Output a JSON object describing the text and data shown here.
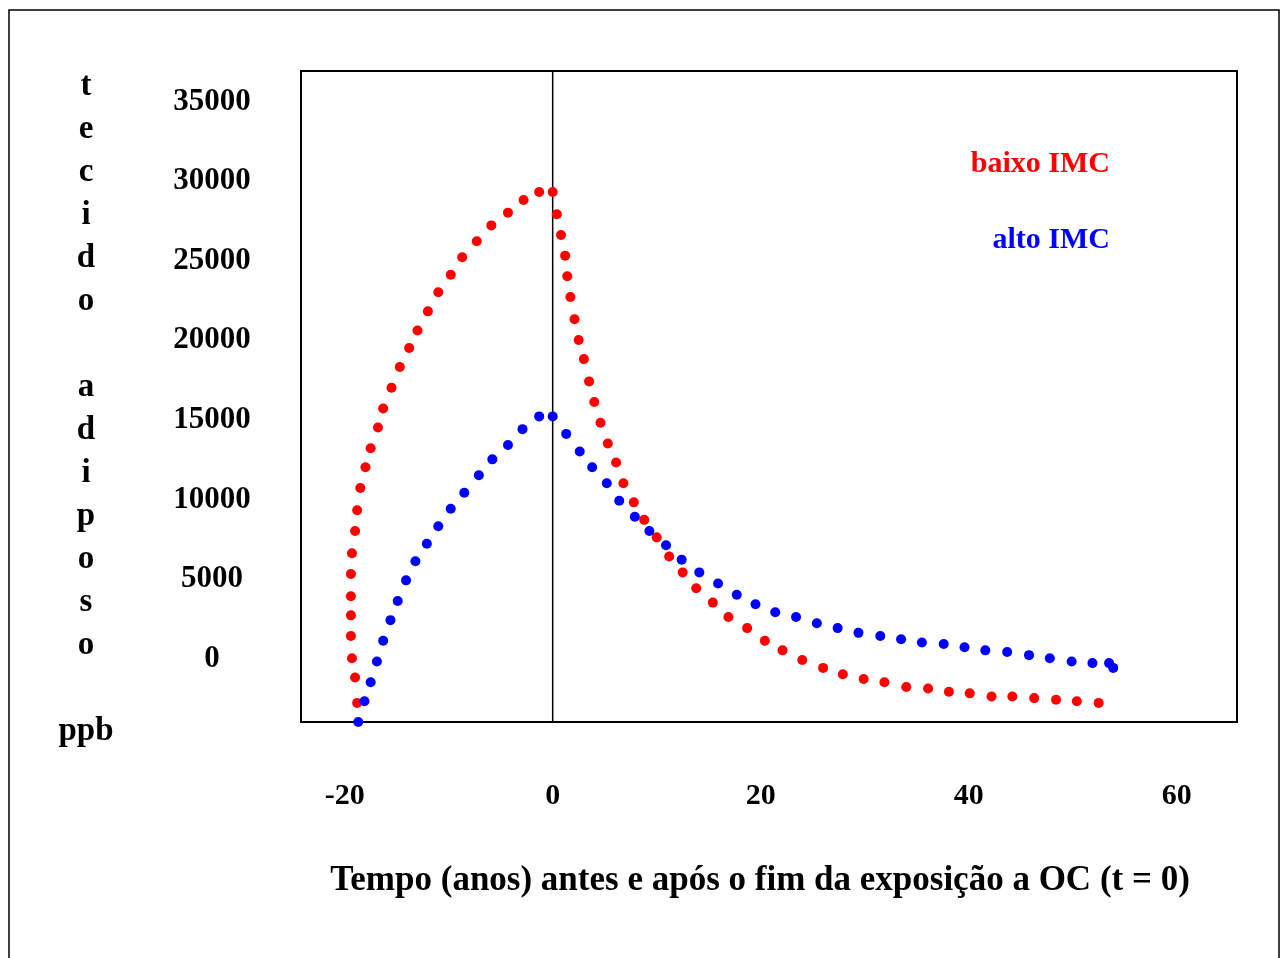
{
  "chart_data": {
    "type": "scatter",
    "xlabel": "Tempo (anos) antes e após o fim da exposição a OC (t = 0)",
    "ylabel": "tecido adiposo ppb",
    "xlim": [
      -24.2,
      65.8
    ],
    "xticks": [
      -20,
      0,
      20,
      40,
      60
    ],
    "ylim": [
      -4100,
      36800
    ],
    "yticks": [
      0,
      5000,
      10000,
      15000,
      20000,
      25000,
      30000,
      35000
    ],
    "grid": false,
    "legend": "top right",
    "marker": "circle",
    "ref_lines": [
      {
        "axis": "x",
        "value": 0,
        "color": "#000000"
      }
    ],
    "series": [
      {
        "name": "baixo IMC",
        "color": "#ff0000",
        "x": [
          -18.8,
          -19.0,
          -19.3,
          -19.4,
          -19.4,
          -19.4,
          -19.4,
          -19.3,
          -19.0,
          -18.8,
          -18.5,
          -18.0,
          -17.5,
          -16.8,
          -16.3,
          -15.5,
          -14.7,
          -13.8,
          -13.0,
          -12.0,
          -11.0,
          -9.8,
          -8.7,
          -7.3,
          -5.9,
          -4.3,
          -2.8,
          -1.3,
          0,
          0.4,
          0.8,
          1.2,
          1.4,
          1.7,
          2.1,
          2.5,
          3.0,
          3.5,
          4.0,
          4.6,
          5.3,
          6.1,
          6.8,
          7.8,
          8.8,
          10.0,
          11.2,
          12.5,
          13.8,
          15.4,
          16.9,
          18.7,
          20.4,
          22.1,
          24.0,
          26.0,
          27.9,
          29.9,
          31.9,
          34.0,
          36.1,
          38.1,
          40.1,
          42.2,
          44.2,
          46.3,
          48.4,
          50.4,
          52.5
        ],
        "values": [
          -2900,
          -1300,
          -100,
          1300,
          2600,
          3800,
          5200,
          6500,
          7900,
          9200,
          10600,
          11900,
          13100,
          14400,
          15600,
          16900,
          18200,
          19400,
          20500,
          21700,
          22900,
          24000,
          25100,
          26100,
          27100,
          27900,
          28700,
          29200,
          29200,
          27800,
          26500,
          25200,
          23900,
          22600,
          21200,
          19900,
          18700,
          17300,
          16000,
          14700,
          13400,
          12200,
          10900,
          9700,
          8600,
          7500,
          6300,
          5300,
          4300,
          3400,
          2500,
          1800,
          1000,
          400,
          -200,
          -700,
          -1100,
          -1400,
          -1600,
          -1900,
          -2000,
          -2200,
          -2300,
          -2500,
          -2500,
          -2600,
          -2700,
          -2800,
          -2900
        ]
      },
      {
        "name": "alto IMC",
        "color": "#0000ff",
        "x": [
          -18.7,
          -18.1,
          -17.5,
          -16.9,
          -16.3,
          -15.6,
          -14.9,
          -14.1,
          -13.2,
          -12.1,
          -11.0,
          -9.8,
          -8.5,
          -7.1,
          -5.8,
          -4.3,
          -2.9,
          -1.3,
          0,
          1.3,
          2.6,
          3.8,
          5.2,
          6.4,
          7.9,
          9.3,
          10.9,
          12.4,
          14.1,
          15.9,
          17.7,
          19.5,
          21.4,
          23.4,
          25.4,
          27.4,
          29.4,
          31.5,
          33.5,
          35.5,
          37.6,
          39.6,
          41.6,
          43.7,
          45.8,
          47.8,
          49.9,
          51.9,
          53.5,
          53.9
        ],
        "values": [
          -4100,
          -2800,
          -1600,
          -300,
          1000,
          2300,
          3500,
          4800,
          6000,
          7100,
          8200,
          9300,
          10300,
          11400,
          12400,
          13300,
          14300,
          15100,
          15100,
          14000,
          12900,
          11900,
          10900,
          9800,
          8800,
          7900,
          7000,
          6100,
          5300,
          4600,
          3900,
          3300,
          2800,
          2500,
          2100,
          1800,
          1500,
          1300,
          1100,
          900,
          800,
          600,
          400,
          300,
          100,
          -100,
          -300,
          -400,
          -400,
          -700
        ]
      }
    ]
  }
}
